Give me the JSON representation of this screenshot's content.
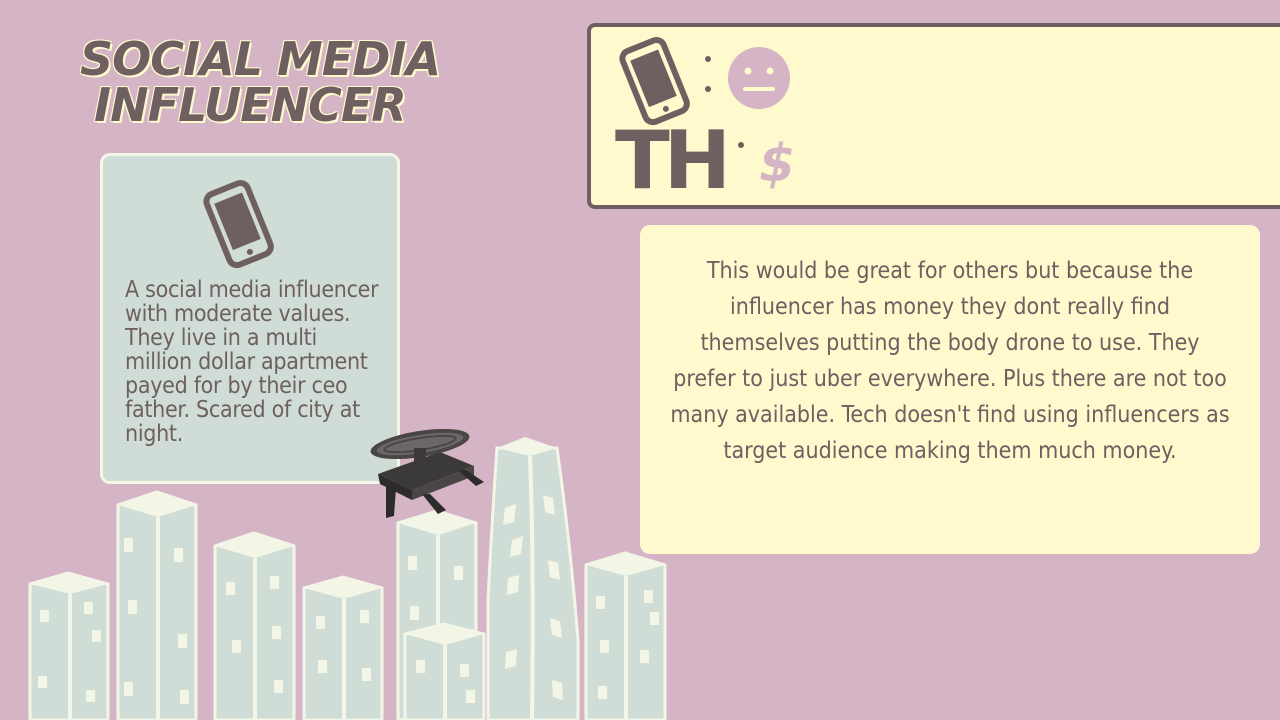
{
  "title": {
    "line1": "SOCIAL MEDIA",
    "line2": "INFLUENCER"
  },
  "profile": {
    "icon": "smartphone-icon",
    "description": "A social media influencer with moderate values. They live in a multi million dollar apartment payed for by their ceo father. Scared of city at night."
  },
  "stats": {
    "phone_icon": "smartphone-icon",
    "mood_icon": "neutral-face-icon",
    "logo_text": "TH",
    "money_symbol": "$"
  },
  "analysis": {
    "text": "This would be great for others but because the influencer has money they dont really find themselves putting the body drone to use. They prefer to just uber everywhere. Plus there are not too many available. Tech doesn't find using influencers as target audience making them much money."
  },
  "colors": {
    "background": "#d5b4c6",
    "dark": "#6e5f61",
    "cream": "#fefacd",
    "mint": "#cfddd6",
    "pink_accent": "#d5b4c6"
  },
  "illustration": {
    "drone": "body-drone-icon",
    "buildings": "city-skyline"
  }
}
